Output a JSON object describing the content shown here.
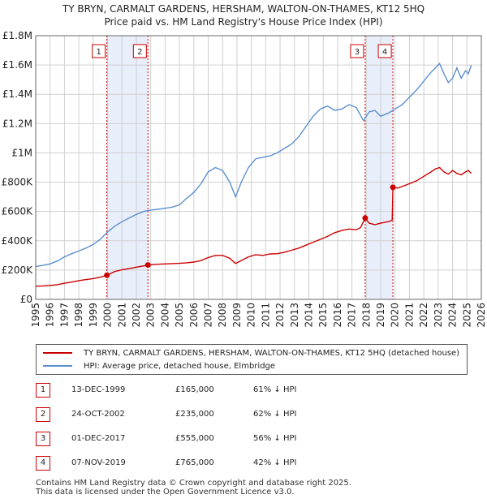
{
  "chart_data": {
    "type": "line",
    "title": "TY BRYN, CARMALT GARDENS, HERSHAM, WALTON-ON-THAMES, KT12 5HQ",
    "subtitle": "Price paid vs. HM Land Registry's House Price Index (HPI)",
    "xlim": [
      1995,
      2026
    ],
    "ylim": [
      0,
      1800000
    ],
    "x_ticks": [
      1995,
      1996,
      1997,
      1998,
      1999,
      2000,
      2001,
      2002,
      2003,
      2004,
      2005,
      2006,
      2007,
      2008,
      2009,
      2010,
      2011,
      2012,
      2013,
      2014,
      2015,
      2016,
      2017,
      2018,
      2019,
      2020,
      2021,
      2022,
      2023,
      2024,
      2025,
      2026
    ],
    "y_ticks": [
      {
        "value": 0,
        "label": "£0"
      },
      {
        "value": 200000,
        "label": "£200K"
      },
      {
        "value": 400000,
        "label": "£400K"
      },
      {
        "value": 600000,
        "label": "£600K"
      },
      {
        "value": 800000,
        "label": "£800K"
      },
      {
        "value": 1000000,
        "label": "£1M"
      },
      {
        "value": 1200000,
        "label": "£1.2M"
      },
      {
        "value": 1400000,
        "label": "£1.4M"
      },
      {
        "value": 1600000,
        "label": "£1.6M"
      },
      {
        "value": 1800000,
        "label": "£1.8M"
      }
    ],
    "shaded_ranges": [
      [
        1999.95,
        2002.81
      ],
      [
        2017.92,
        2019.85
      ]
    ],
    "series": [
      {
        "name": "TY BRYN, CARMALT GARDENS, HERSHAM, WALTON-ON-THAMES, KT12 5HQ (detached house)",
        "color": "#cc0000",
        "x": [
          1995.0,
          1995.5,
          1996.0,
          1996.5,
          1997.0,
          1997.5,
          1998.0,
          1998.5,
          1999.0,
          1999.5,
          1999.95,
          2000.5,
          2001.0,
          2001.5,
          2002.0,
          2002.5,
          2002.81,
          2003.5,
          2004.0,
          2004.5,
          2005.0,
          2005.5,
          2006.0,
          2006.5,
          2007.0,
          2007.5,
          2008.0,
          2008.5,
          2008.9,
          2009.3,
          2009.8,
          2010.3,
          2010.8,
          2011.3,
          2011.8,
          2012.3,
          2012.8,
          2013.3,
          2013.8,
          2014.3,
          2014.8,
          2015.3,
          2015.8,
          2016.3,
          2016.8,
          2017.3,
          2017.6,
          2017.92,
          2018.2,
          2018.6,
          2019.0,
          2019.5,
          2019.8,
          2019.85,
          2020.2,
          2020.6,
          2021.0,
          2021.5,
          2022.0,
          2022.5,
          2022.8,
          2023.1,
          2023.4,
          2023.7,
          2024.0,
          2024.3,
          2024.6,
          2024.9,
          2025.1,
          2025.3
        ],
        "values": [
          90000,
          92000,
          95000,
          100000,
          110000,
          118000,
          128000,
          135000,
          142000,
          152000,
          165000,
          190000,
          202000,
          210000,
          220000,
          228000,
          235000,
          240000,
          242000,
          244000,
          246000,
          250000,
          255000,
          265000,
          285000,
          300000,
          300000,
          280000,
          245000,
          265000,
          290000,
          305000,
          300000,
          310000,
          312000,
          322000,
          335000,
          350000,
          370000,
          390000,
          410000,
          430000,
          455000,
          470000,
          480000,
          475000,
          490000,
          555000,
          520000,
          510000,
          520000,
          530000,
          540000,
          765000,
          760000,
          775000,
          790000,
          810000,
          840000,
          870000,
          890000,
          900000,
          870000,
          855000,
          880000,
          860000,
          850000,
          870000,
          880000,
          860000
        ]
      },
      {
        "name": "HPI: Average price, detached house, Elmbridge",
        "color": "#5b8fd0",
        "x": [
          1995.0,
          1995.5,
          1996.0,
          1996.5,
          1997.0,
          1997.5,
          1998.0,
          1998.5,
          1999.0,
          1999.5,
          2000.0,
          2000.5,
          2001.0,
          2001.5,
          2002.0,
          2002.5,
          2003.0,
          2003.5,
          2004.0,
          2004.5,
          2005.0,
          2005.5,
          2006.0,
          2006.5,
          2007.0,
          2007.5,
          2008.0,
          2008.5,
          2008.9,
          2009.3,
          2009.8,
          2010.3,
          2010.8,
          2011.3,
          2011.8,
          2012.3,
          2012.8,
          2013.3,
          2013.8,
          2014.3,
          2014.8,
          2015.3,
          2015.8,
          2016.3,
          2016.8,
          2017.3,
          2017.8,
          2018.2,
          2018.6,
          2019.0,
          2019.5,
          2020.0,
          2020.5,
          2021.0,
          2021.5,
          2022.0,
          2022.4,
          2022.8,
          2023.1,
          2023.4,
          2023.7,
          2024.0,
          2024.3,
          2024.6,
          2024.9,
          2025.1,
          2025.3
        ],
        "values": [
          225000,
          232000,
          242000,
          262000,
          290000,
          312000,
          330000,
          350000,
          375000,
          410000,
          460000,
          500000,
          530000,
          555000,
          580000,
          600000,
          610000,
          615000,
          622000,
          630000,
          645000,
          690000,
          730000,
          790000,
          870000,
          900000,
          880000,
          800000,
          700000,
          800000,
          900000,
          960000,
          970000,
          980000,
          1000000,
          1030000,
          1060000,
          1110000,
          1180000,
          1250000,
          1300000,
          1320000,
          1290000,
          1300000,
          1330000,
          1310000,
          1220000,
          1280000,
          1290000,
          1250000,
          1270000,
          1300000,
          1330000,
          1380000,
          1430000,
          1490000,
          1540000,
          1580000,
          1610000,
          1540000,
          1480000,
          1510000,
          1580000,
          1510000,
          1560000,
          1540000,
          1600000
        ]
      }
    ],
    "markers": [
      {
        "label": "1",
        "x": 1999.95,
        "value": 165000
      },
      {
        "label": "2",
        "x": 2002.81,
        "value": 235000
      },
      {
        "label": "3",
        "x": 2017.92,
        "value": 555000
      },
      {
        "label": "4",
        "x": 2019.85,
        "value": 765000
      }
    ]
  },
  "title_line1": "TY BRYN, CARMALT GARDENS, HERSHAM, WALTON-ON-THAMES, KT12 5HQ",
  "title_line2": "Price paid vs. HM Land Registry's House Price Index (HPI)",
  "legend": {
    "property": "TY BRYN, CARMALT GARDENS, HERSHAM, WALTON-ON-THAMES, KT12 5HQ (detached house)",
    "hpi": "HPI: Average price, detached house, Elmbridge"
  },
  "sales": [
    {
      "num": "1",
      "date": "13-DEC-1999",
      "price": "£165,000",
      "hpi": "61% ↓ HPI"
    },
    {
      "num": "2",
      "date": "24-OCT-2002",
      "price": "£235,000",
      "hpi": "62% ↓ HPI"
    },
    {
      "num": "3",
      "date": "01-DEC-2017",
      "price": "£555,000",
      "hpi": "56% ↓ HPI"
    },
    {
      "num": "4",
      "date": "07-NOV-2019",
      "price": "£765,000",
      "hpi": "42% ↓ HPI"
    }
  ],
  "footer": {
    "line1": "Contains HM Land Registry data © Crown copyright and database right 2025.",
    "line2": "This data is licensed under the Open Government Licence v3.0."
  },
  "colors": {
    "property": "#cc0000",
    "hpi": "#5b8fd0",
    "shade": "#e8eefa",
    "grid": "#d0d0d0"
  }
}
